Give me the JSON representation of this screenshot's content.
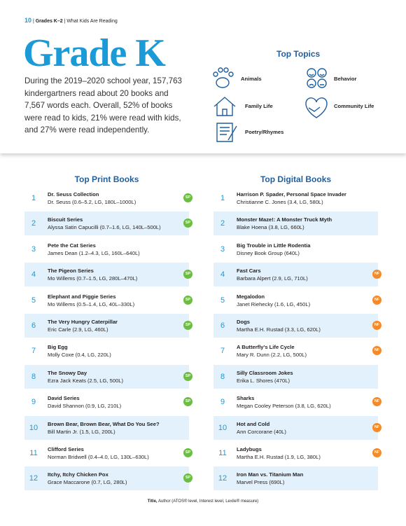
{
  "header": {
    "page_number": "10",
    "section": "Grades K–2",
    "subsection": "What Kids Are Reading"
  },
  "title": "Grade K",
  "intro": "During the 2019–2020 school year, 157,763 kindergartners read about 20 books and 7,567 words each. Overall, 52% of books were read to kids, 21% were read with kids, and 27% were read independently.",
  "top_topics": {
    "title": "Top Topics",
    "items": [
      "Animals",
      "Behavior",
      "Family Life",
      "Community Life",
      "Poetry/Rhymes"
    ]
  },
  "print_books": {
    "title": "Top Print Books",
    "rows": [
      {
        "rank": 1,
        "title": "Dr. Seuss Collection",
        "details": "Dr. Seuss (0.6–5.2, LG, 180L–1000L)",
        "badge": "SP"
      },
      {
        "rank": 2,
        "title": "Biscuit Series",
        "details": "Alyssa Satin Capucilli (0.7–1.6, LG, 140L–500L)",
        "badge": "SP"
      },
      {
        "rank": 3,
        "title": "Pete the Cat Series",
        "details": "James Dean (1.2–4.3, LG, 160L–640L)"
      },
      {
        "rank": 4,
        "title": "The Pigeon Series",
        "details": "Mo Willems (0.7–1.5, LG, 280L–470L)",
        "badge": "SP"
      },
      {
        "rank": 5,
        "title": "Elephant and Piggie Series",
        "details": "Mo Willems (0.5–1.4, LG, 40L–330L)",
        "badge": "SP"
      },
      {
        "rank": 6,
        "title": "The Very Hungry Caterpillar",
        "details": "Eric Carle (2.9, LG, 460L)",
        "badge": "SP"
      },
      {
        "rank": 7,
        "title": "Big Egg",
        "details": "Molly Coxe (0.4, LG, 220L)"
      },
      {
        "rank": 8,
        "title": "The Snowy Day",
        "details": "Ezra Jack Keats (2.5, LG, 500L)",
        "badge": "SP"
      },
      {
        "rank": 9,
        "title": "David Series",
        "details": "David Shannon (0.9, LG, 210L)",
        "badge": "SP"
      },
      {
        "rank": 10,
        "title": "Brown Bear, Brown Bear, What Do You See?",
        "details": "Bill Martin Jr. (1.5, LG, 200L)"
      },
      {
        "rank": 11,
        "title": "Clifford Series",
        "details": "Norman Bridwell (0.4–4.0, LG, 130L–630L)",
        "badge": "SP"
      },
      {
        "rank": 12,
        "title": "Itchy, Itchy Chicken Pox",
        "details": "Grace Maccarone (0.7, LG, 280L)",
        "badge": "SP"
      }
    ]
  },
  "digital_books": {
    "title": "Top Digital Books",
    "rows": [
      {
        "rank": 1,
        "title": "Harrison P. Spader, Personal Space Invader",
        "details": "Christianne C. Jones (3.4, LG, 580L)"
      },
      {
        "rank": 2,
        "title": "Monster Maze!: A Monster Truck Myth",
        "details": "Blake Hoena (3.8, LG, 660L)"
      },
      {
        "rank": 3,
        "title": "Big Trouble in Little Rodentia",
        "details": "Disney Book Group (640L)"
      },
      {
        "rank": 4,
        "title": "Fast Cars",
        "details": "Barbara Alpert (2.9, LG, 710L)",
        "badge": "NF"
      },
      {
        "rank": 5,
        "title": "Megalodon",
        "details": "Janet Riehecky (1.6, LG, 450L)",
        "badge": "NF"
      },
      {
        "rank": 6,
        "title": "Dogs",
        "details": "Martha E.H. Rustad (3.3, LG, 620L)",
        "badge": "NF"
      },
      {
        "rank": 7,
        "title": "A Butterfly's Life Cycle",
        "details": "Mary R. Dunn (2.2, LG, 500L)",
        "badge": "NF"
      },
      {
        "rank": 8,
        "title": "Silly Classroom Jokes",
        "details": "Erika L. Shores (470L)"
      },
      {
        "rank": 9,
        "title": "Sharks",
        "details": "Megan Cooley Peterson (3.8, LG, 620L)",
        "badge": "NF"
      },
      {
        "rank": 10,
        "title": "Hot and Cold",
        "details": "Ann Corcorane (40L)",
        "badge": "NF"
      },
      {
        "rank": 11,
        "title": "Ladybugs",
        "details": "Martha E.H. Rustad (1.9, LG, 380L)",
        "badge": "NF"
      },
      {
        "rank": 12,
        "title": "Iron Man vs. Titanium Man",
        "details": "Marvel Press (690L)"
      }
    ]
  },
  "footnote": {
    "lead": "Title,",
    "rest": "Author (ATOS® level, Interest level, Lexile® measure)"
  }
}
